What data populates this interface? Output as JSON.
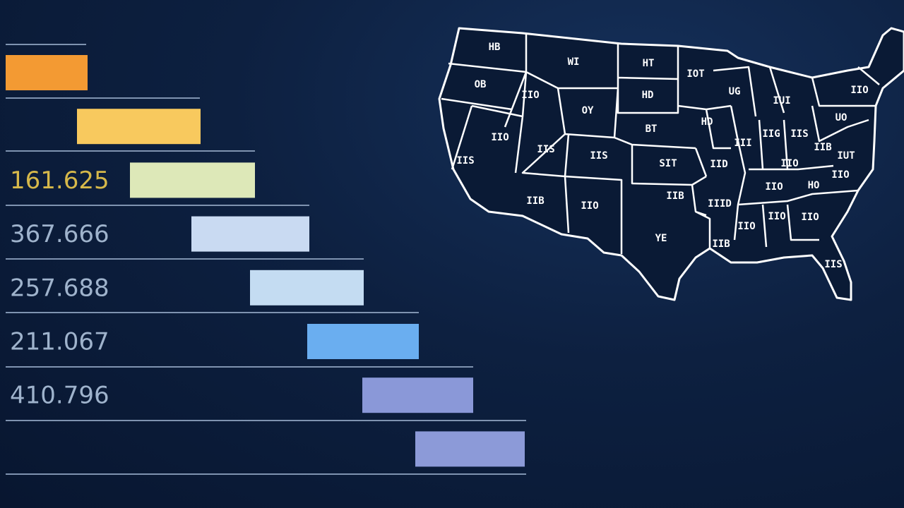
{
  "rows": [
    {
      "color": "#f39a33"
    },
    {
      "color": "#f8c95e"
    },
    {
      "label": "161.625",
      "color": "#dde8b8"
    },
    {
      "label": "367.666",
      "color": "#c9daf2"
    },
    {
      "label": "257.688",
      "color": "#c4dcf2"
    },
    {
      "label": "211.067",
      "color": "#6aaef0"
    },
    {
      "label": "410.796",
      "color": "#8a98d8"
    },
    {
      "color": "#8c9ad8"
    }
  ],
  "map": {
    "labels": [
      "HB",
      "WI",
      "HT",
      "IOT",
      "OB",
      "IIO",
      "OY",
      "HD",
      "HD",
      "BT",
      "UG",
      "IUI",
      "IIO",
      "UO",
      "IIS",
      "IIO",
      "IIS",
      "IIS",
      "SIT",
      "IID",
      "III",
      "IIG",
      "IIS",
      "IIB",
      "IUT",
      "IIO",
      "IIO",
      "HO",
      "IIO",
      "IIB",
      "IIO",
      "IIB",
      "IIID",
      "IIO",
      "IIO",
      "IIO",
      "YE",
      "IIB",
      "IIS"
    ]
  }
}
